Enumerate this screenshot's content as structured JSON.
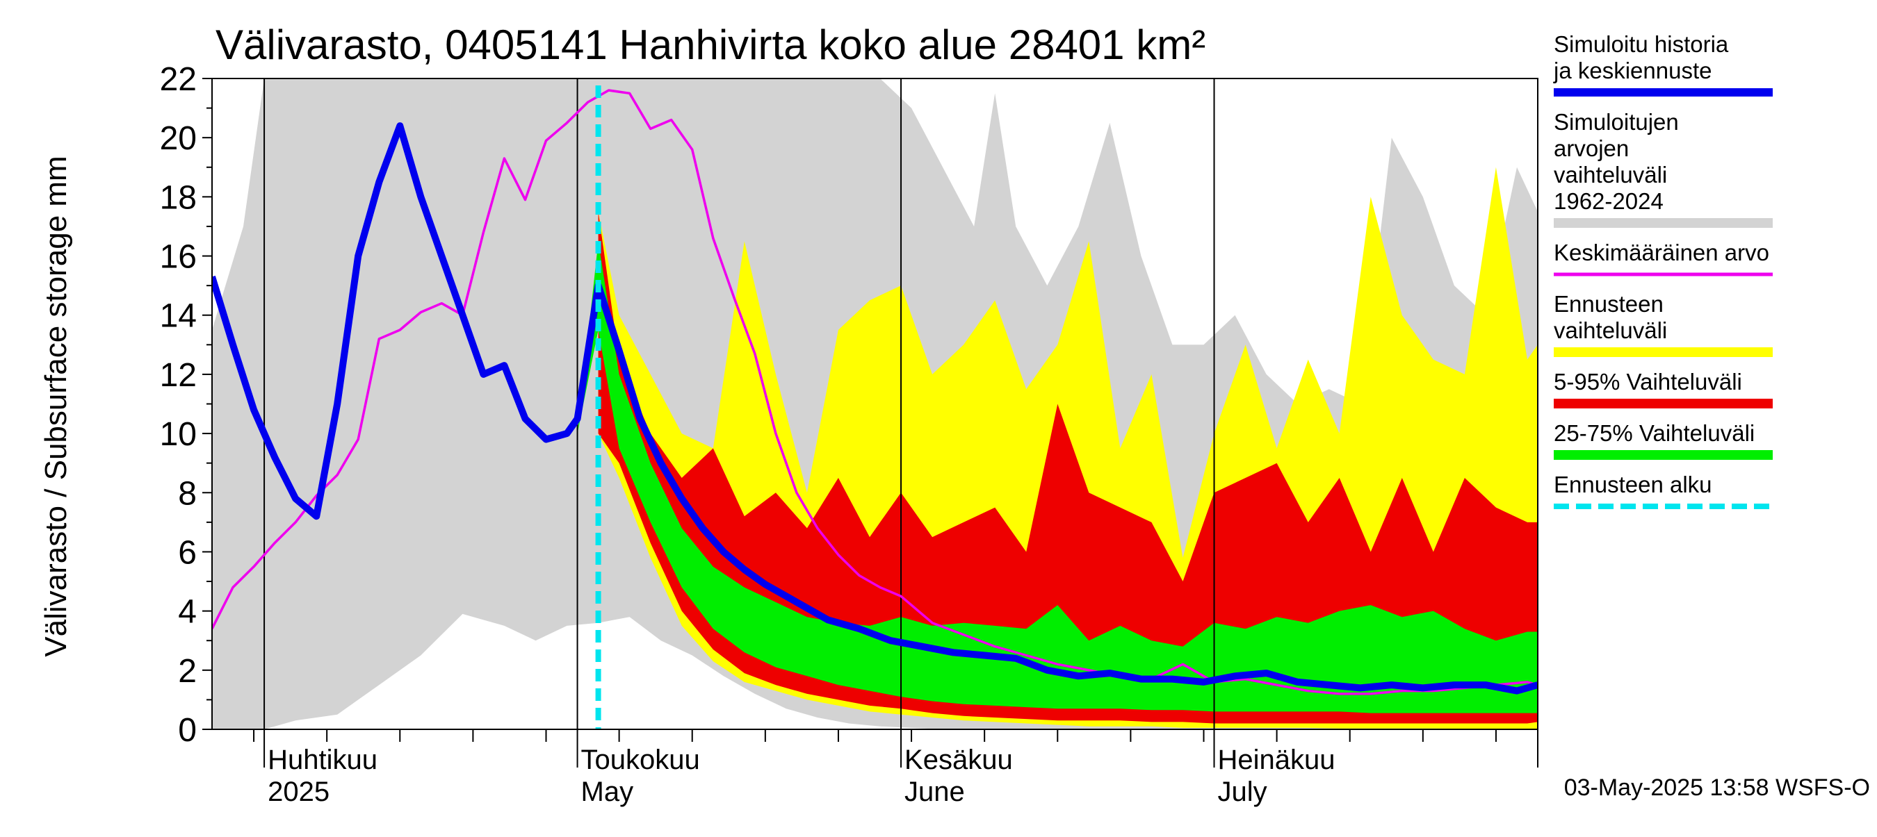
{
  "chart_data": {
    "type": "area",
    "title": "Välivarasto, 0405141 Hanhivirta koko alue 28401 km²",
    "ylabel": "Välivarasto / Subsurface storage  mm",
    "ylim": [
      0,
      22
    ],
    "yticks": [
      0,
      2,
      4,
      6,
      8,
      10,
      12,
      14,
      16,
      18,
      20,
      22
    ],
    "xlim": [
      "2025-03-27",
      "2025-08-01"
    ],
    "month_labels": [
      {
        "top": "Huhtikuu",
        "bottom": "2025",
        "start": "2025-04-01"
      },
      {
        "top": "Toukokuu",
        "bottom": "May",
        "start": "2025-05-01"
      },
      {
        "top": "Kesäkuu",
        "bottom": "June",
        "start": "2025-06-01"
      },
      {
        "top": "Heinäkuu",
        "bottom": "July",
        "start": "2025-07-01"
      }
    ],
    "forecast_start": "2025-05-03",
    "footer": "03-May-2025 13:58 WSFS-O",
    "legend_position": "right",
    "legend": [
      {
        "label": "Simuloitu historia ja keskiennuste",
        "color": "#0000ee",
        "style": "thick-line"
      },
      {
        "label": "Simuloitujen arvojen vaihteluväli 1962-2024",
        "color": "#d3d3d3",
        "style": "band"
      },
      {
        "label": "Keskimääräinen arvo",
        "color": "#ee00ee",
        "style": "line"
      },
      {
        "label": "Ennusteen vaihteluväli",
        "color": "#ffff00",
        "style": "band"
      },
      {
        "label": "5-95% Vaihteluväli",
        "color": "#ee0000",
        "style": "band"
      },
      {
        "label": "25-75% Vaihteluväli",
        "color": "#00ee00",
        "style": "band"
      },
      {
        "label": "Ennusteen alku",
        "color": "#00e5ee",
        "style": "dashed-line"
      }
    ],
    "series": [
      {
        "name": "Simuloitujen arvojen vaihteluväli 1962-2024",
        "kind": "band",
        "color": "#d3d3d3",
        "x": [
          "2025-03-27",
          "2025-03-30",
          "2025-04-01",
          "2025-04-04",
          "2025-04-08",
          "2025-04-12",
          "2025-04-16",
          "2025-04-20",
          "2025-04-24",
          "2025-04-27",
          "2025-04-30",
          "2025-05-03",
          "2025-05-06",
          "2025-05-09",
          "2025-05-12",
          "2025-05-15",
          "2025-05-18",
          "2025-05-21",
          "2025-05-24",
          "2025-05-27",
          "2025-05-30",
          "2025-06-02",
          "2025-06-05",
          "2025-06-08",
          "2025-06-10",
          "2025-06-12",
          "2025-06-15",
          "2025-06-18",
          "2025-06-21",
          "2025-06-24",
          "2025-06-27",
          "2025-06-30",
          "2025-07-03",
          "2025-07-06",
          "2025-07-09",
          "2025-07-12",
          "2025-07-15",
          "2025-07-18",
          "2025-07-21",
          "2025-07-24",
          "2025-07-27",
          "2025-07-30",
          "2025-08-01"
        ],
        "low": [
          0,
          0,
          0,
          0.3,
          0.5,
          1.5,
          2.5,
          3.9,
          3.5,
          3.0,
          3.5,
          3.6,
          3.8,
          3.0,
          2.5,
          1.8,
          1.2,
          0.7,
          0.4,
          0.2,
          0.1,
          0.05,
          0,
          0,
          0,
          0,
          0,
          0,
          0,
          0,
          0,
          0,
          0,
          0,
          0,
          0,
          0,
          0,
          0,
          0,
          0,
          0,
          0
        ],
        "high": [
          13.5,
          17,
          22,
          22,
          22,
          22,
          22,
          22,
          22,
          22,
          22,
          22,
          22,
          22,
          22,
          22,
          22,
          22,
          22,
          22,
          22,
          21,
          19,
          17,
          21.5,
          17,
          15,
          17,
          20.5,
          16,
          13,
          13,
          14,
          12,
          11,
          11.5,
          11,
          20,
          18,
          15,
          14,
          19,
          17.5
        ]
      },
      {
        "name": "Ennusteen vaihteluväli",
        "kind": "band",
        "color": "#ffff00",
        "x": [
          "2025-05-03",
          "2025-05-05",
          "2025-05-08",
          "2025-05-11",
          "2025-05-14",
          "2025-05-17",
          "2025-05-20",
          "2025-05-23",
          "2025-05-26",
          "2025-05-29",
          "2025-06-01",
          "2025-06-04",
          "2025-06-07",
          "2025-06-10",
          "2025-06-13",
          "2025-06-16",
          "2025-06-19",
          "2025-06-22",
          "2025-06-25",
          "2025-06-28",
          "2025-07-01",
          "2025-07-04",
          "2025-07-07",
          "2025-07-10",
          "2025-07-13",
          "2025-07-16",
          "2025-07-19",
          "2025-07-22",
          "2025-07-25",
          "2025-07-28",
          "2025-07-31",
          "2025-08-01"
        ],
        "low": [
          10,
          8.5,
          5.8,
          3.5,
          2.3,
          1.6,
          1.3,
          1.0,
          0.8,
          0.6,
          0.5,
          0.4,
          0.3,
          0.25,
          0.2,
          0.15,
          0.1,
          0.1,
          0.1,
          0.05,
          0.05,
          0.05,
          0.05,
          0.05,
          0.03,
          0.03,
          0.03,
          0.03,
          0.02,
          0.02,
          0.02,
          0.02
        ],
        "high": [
          17.5,
          14,
          12,
          10,
          9.5,
          16.5,
          12,
          8,
          13.5,
          14.5,
          15,
          12,
          13,
          14.5,
          11.5,
          13,
          16.5,
          9.5,
          12,
          5.8,
          10,
          13,
          9.5,
          12.5,
          10,
          18,
          14,
          12.5,
          12,
          19,
          12.5,
          13
        ]
      },
      {
        "name": "5-95% Vaihteluväli",
        "kind": "band",
        "color": "#ee0000",
        "x": [
          "2025-05-03",
          "2025-05-05",
          "2025-05-08",
          "2025-05-11",
          "2025-05-14",
          "2025-05-17",
          "2025-05-20",
          "2025-05-23",
          "2025-05-26",
          "2025-05-29",
          "2025-06-01",
          "2025-06-04",
          "2025-06-07",
          "2025-06-10",
          "2025-06-13",
          "2025-06-16",
          "2025-06-19",
          "2025-06-22",
          "2025-06-25",
          "2025-06-28",
          "2025-07-01",
          "2025-07-04",
          "2025-07-07",
          "2025-07-10",
          "2025-07-13",
          "2025-07-16",
          "2025-07-19",
          "2025-07-22",
          "2025-07-25",
          "2025-07-28",
          "2025-07-31",
          "2025-08-01"
        ],
        "low": [
          10,
          9.0,
          6.3,
          4.0,
          2.7,
          1.9,
          1.5,
          1.2,
          1.0,
          0.8,
          0.7,
          0.55,
          0.45,
          0.4,
          0.35,
          0.3,
          0.3,
          0.3,
          0.25,
          0.25,
          0.2,
          0.2,
          0.2,
          0.2,
          0.2,
          0.2,
          0.2,
          0.2,
          0.2,
          0.2,
          0.2,
          0.25
        ],
        "high": [
          17.5,
          12.5,
          10,
          8.5,
          9.5,
          7.2,
          8,
          6.8,
          8.5,
          6.5,
          8,
          6.5,
          7,
          7.5,
          6,
          11,
          8,
          7.5,
          7,
          5,
          8,
          8.5,
          9,
          7,
          8.5,
          6,
          8.5,
          6,
          8.5,
          7.5,
          7,
          7
        ]
      },
      {
        "name": "25-75% Vaihteluväli",
        "kind": "band",
        "color": "#00ee00",
        "x": [
          "2025-05-01",
          "2025-05-03",
          "2025-05-05",
          "2025-05-08",
          "2025-05-11",
          "2025-05-14",
          "2025-05-17",
          "2025-05-20",
          "2025-05-23",
          "2025-05-26",
          "2025-05-29",
          "2025-06-01",
          "2025-06-04",
          "2025-06-07",
          "2025-06-10",
          "2025-06-13",
          "2025-06-16",
          "2025-06-19",
          "2025-06-22",
          "2025-06-25",
          "2025-06-28",
          "2025-07-01",
          "2025-07-04",
          "2025-07-07",
          "2025-07-10",
          "2025-07-13",
          "2025-07-16",
          "2025-07-19",
          "2025-07-22",
          "2025-07-25",
          "2025-07-28",
          "2025-07-31",
          "2025-08-01"
        ],
        "low": [
          10,
          13.5,
          9.5,
          7.0,
          4.8,
          3.4,
          2.6,
          2.1,
          1.8,
          1.5,
          1.3,
          1.1,
          0.95,
          0.85,
          0.8,
          0.75,
          0.7,
          0.7,
          0.7,
          0.65,
          0.65,
          0.6,
          0.6,
          0.6,
          0.6,
          0.6,
          0.55,
          0.55,
          0.55,
          0.55,
          0.55,
          0.55,
          0.55
        ],
        "high": [
          10,
          16.5,
          12,
          9.0,
          6.8,
          5.5,
          4.8,
          4.3,
          3.8,
          3.6,
          3.5,
          3.8,
          3.5,
          3.6,
          3.5,
          3.4,
          4.2,
          3.0,
          3.5,
          3.0,
          2.8,
          3.6,
          3.4,
          3.8,
          3.6,
          4.0,
          4.2,
          3.8,
          4.0,
          3.4,
          3.0,
          3.3,
          3.3
        ]
      },
      {
        "name": "Keskimääräinen arvo",
        "kind": "line",
        "color": "#ee00ee",
        "x": [
          "2025-03-27",
          "2025-03-29",
          "2025-03-31",
          "2025-04-02",
          "2025-04-04",
          "2025-04-06",
          "2025-04-08",
          "2025-04-10",
          "2025-04-12",
          "2025-04-14",
          "2025-04-16",
          "2025-04-18",
          "2025-04-20",
          "2025-04-22",
          "2025-04-24",
          "2025-04-26",
          "2025-04-28",
          "2025-04-30",
          "2025-05-02",
          "2025-05-04",
          "2025-05-06",
          "2025-05-08",
          "2025-05-10",
          "2025-05-12",
          "2025-05-14",
          "2025-05-16",
          "2025-05-18",
          "2025-05-20",
          "2025-05-22",
          "2025-05-24",
          "2025-05-26",
          "2025-05-28",
          "2025-05-30",
          "2025-06-01",
          "2025-06-04",
          "2025-06-07",
          "2025-06-10",
          "2025-06-13",
          "2025-06-16",
          "2025-06-19",
          "2025-06-22",
          "2025-06-25",
          "2025-06-28",
          "2025-07-01",
          "2025-07-04",
          "2025-07-07",
          "2025-07-10",
          "2025-07-13",
          "2025-07-16",
          "2025-07-19",
          "2025-07-22",
          "2025-07-25",
          "2025-07-28",
          "2025-07-31",
          "2025-08-01"
        ],
        "y": [
          3.4,
          4.8,
          5.5,
          6.3,
          7.0,
          7.9,
          8.6,
          9.8,
          13.2,
          13.5,
          14.1,
          14.4,
          14.0,
          16.8,
          19.3,
          17.9,
          19.9,
          20.5,
          21.2,
          21.6,
          21.5,
          20.3,
          20.6,
          19.6,
          16.6,
          14.6,
          12.7,
          10.0,
          8.0,
          6.8,
          5.9,
          5.2,
          4.8,
          4.5,
          3.6,
          3.2,
          2.8,
          2.5,
          2.2,
          2.0,
          1.8,
          1.7,
          2.2,
          1.6,
          1.7,
          1.5,
          1.3,
          1.2,
          1.2,
          1.3,
          1.3,
          1.4,
          1.5,
          1.6,
          1.5
        ]
      },
      {
        "name": "Simuloitu historia ja keskiennuste",
        "kind": "line",
        "color": "#0000ee",
        "x": [
          "2025-03-27",
          "2025-03-29",
          "2025-03-31",
          "2025-04-02",
          "2025-04-04",
          "2025-04-06",
          "2025-04-08",
          "2025-04-10",
          "2025-04-12",
          "2025-04-14",
          "2025-04-16",
          "2025-04-18",
          "2025-04-20",
          "2025-04-22",
          "2025-04-24",
          "2025-04-26",
          "2025-04-28",
          "2025-04-30",
          "2025-05-01",
          "2025-05-03",
          "2025-05-05",
          "2025-05-07",
          "2025-05-09",
          "2025-05-11",
          "2025-05-13",
          "2025-05-15",
          "2025-05-17",
          "2025-05-19",
          "2025-05-21",
          "2025-05-23",
          "2025-05-25",
          "2025-05-28",
          "2025-05-31",
          "2025-06-03",
          "2025-06-06",
          "2025-06-09",
          "2025-06-12",
          "2025-06-15",
          "2025-06-18",
          "2025-06-21",
          "2025-06-24",
          "2025-06-27",
          "2025-06-30",
          "2025-07-03",
          "2025-07-06",
          "2025-07-09",
          "2025-07-12",
          "2025-07-15",
          "2025-07-18",
          "2025-07-21",
          "2025-07-24",
          "2025-07-27",
          "2025-07-30",
          "2025-08-01"
        ],
        "y": [
          15.3,
          13.0,
          10.8,
          9.2,
          7.8,
          7.2,
          11.0,
          16.0,
          18.5,
          20.4,
          18.0,
          16.0,
          14.0,
          12.0,
          12.3,
          10.5,
          9.8,
          10.0,
          10.5,
          15.0,
          12.8,
          10.5,
          9.0,
          7.8,
          6.8,
          6.0,
          5.4,
          4.9,
          4.5,
          4.1,
          3.7,
          3.4,
          3.0,
          2.8,
          2.6,
          2.5,
          2.4,
          2.0,
          1.8,
          1.9,
          1.7,
          1.7,
          1.6,
          1.8,
          1.9,
          1.6,
          1.5,
          1.4,
          1.5,
          1.4,
          1.5,
          1.5,
          1.3,
          1.5
        ]
      }
    ]
  }
}
